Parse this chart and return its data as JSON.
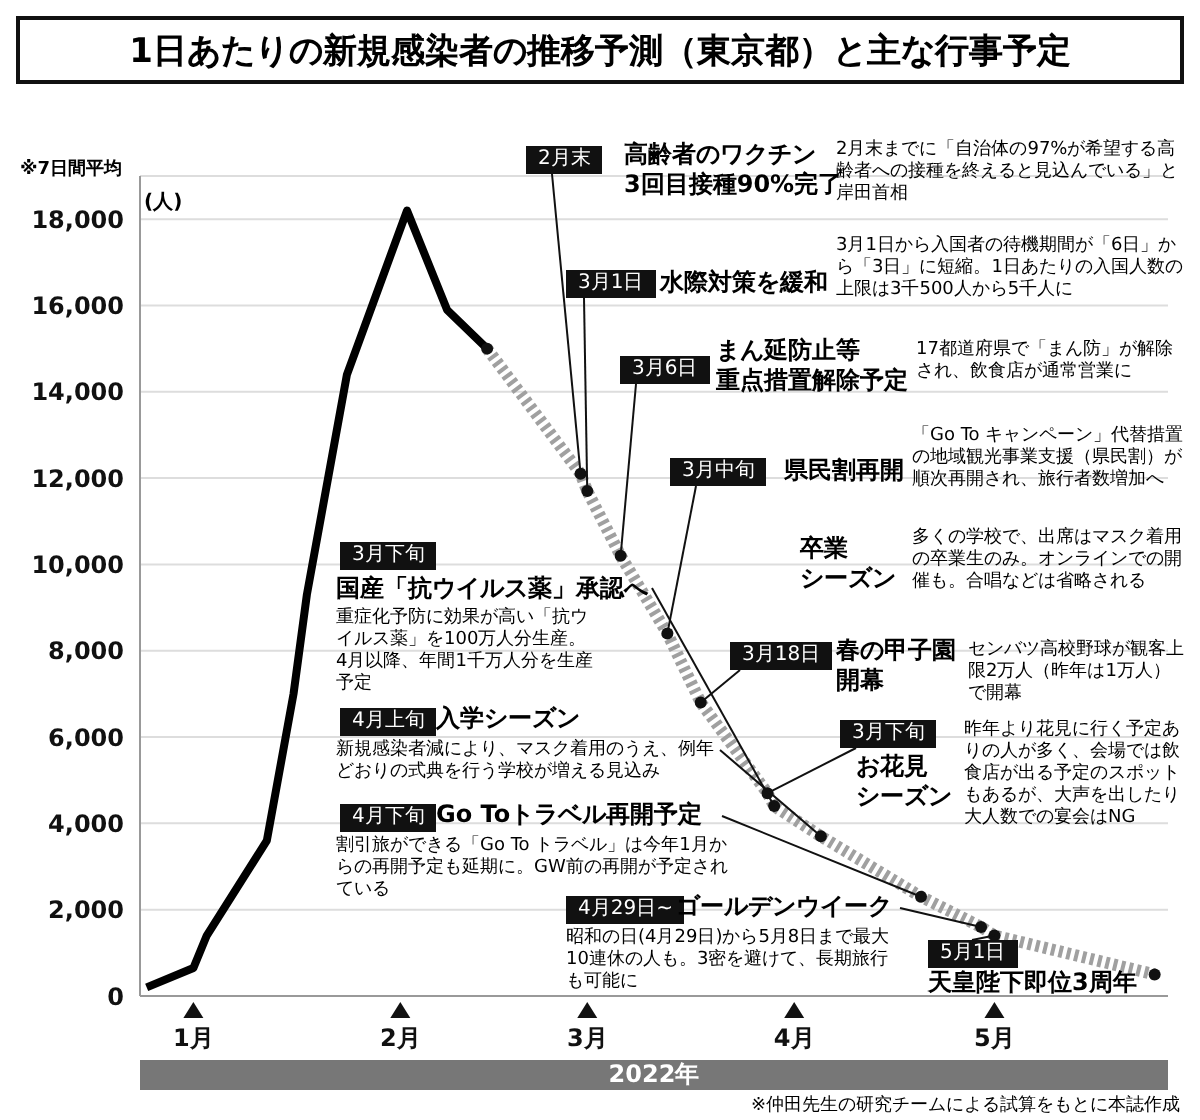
{
  "chart_data": {
    "type": "line",
    "title": "1日あたりの新規感染者の推移予測（東京都）と主な行事予定",
    "xlabel": "2022年",
    "ylabel": "(人)",
    "xlim": [
      "2021-12-24",
      "2022-05-27"
    ],
    "xticks": [
      {
        "value": "2022-01-01",
        "label": "1月"
      },
      {
        "value": "2022-02-01",
        "label": "2月"
      },
      {
        "value": "2022-03-01",
        "label": "3月"
      },
      {
        "value": "2022-04-01",
        "label": "4月"
      },
      {
        "value": "2022-05-01",
        "label": "5月"
      }
    ],
    "ylim": [
      0,
      19000
    ],
    "yticks": [
      0,
      {
        "value": 2000,
        "label": "2,000"
      },
      {
        "value": 4000,
        "label": "4,000"
      },
      {
        "value": 6000,
        "label": "6,000"
      },
      {
        "value": 8000,
        "label": "8,000"
      },
      {
        "value": 10000,
        "label": "10,000"
      },
      {
        "value": 12000,
        "label": "12,000"
      },
      {
        "value": 14000,
        "label": "14,000"
      },
      {
        "value": 16000,
        "label": "16,000"
      },
      {
        "value": 18000,
        "label": "18,000"
      }
    ],
    "grid": "y",
    "series": [
      {
        "color": "#000000",
        "line_style": "solid",
        "x": [
          "2021-12-25",
          "2022-01-01",
          "2022-01-03",
          "2022-01-12",
          "2022-01-16",
          "2022-01-18",
          "2022-01-24",
          "2022-02-02",
          "2022-02-08",
          "2022-02-14"
        ],
        "values": [
          200,
          650,
          1400,
          3600,
          7000,
          9300,
          14400,
          18200,
          15900,
          15000
        ]
      },
      {
        "color": "#a0a0a0",
        "line_style": "dotted",
        "marker": "circle",
        "x": [
          "2022-02-14",
          "2022-02-28",
          "2022-03-01",
          "2022-03-06",
          "2022-03-13",
          "2022-03-18",
          "2022-03-28",
          "2022-03-29",
          "2022-04-05",
          "2022-04-20",
          "2022-04-29",
          "2022-05-01",
          "2022-05-25"
        ],
        "values": [
          15000,
          12100,
          11700,
          10200,
          8400,
          6800,
          4700,
          4400,
          3700,
          2300,
          1600,
          1400,
          500
        ]
      }
    ],
    "annotations": [
      "※7日間平均",
      "※仲田先生の研究チームによる試算をもとに本誌作成",
      {
        "text": "2月末",
        "x": "2022-02-28",
        "y": 12100
      },
      "高齢者のワクチン",
      "3回目接種90%完了",
      "2月末までに「自治体の97%が希望する高齢者への接種を終えると見込んでいる」と岸田首相",
      {
        "text": "3月1日",
        "x": "2022-03-01",
        "y": 11700
      },
      "水際対策を緩和",
      "3月1日から入国者の待機期間が「6日」から「3日」に短縮。1日あたりの入国人数の上限は3千500人から5千人に",
      {
        "text": "3月6日",
        "x": "2022-03-06",
        "y": 10200
      },
      "まん延防止等",
      "重点措置解除予定",
      "17都道府県で「まん防」が解除され、飲食店が通常営業に",
      {
        "text": "3月中旬",
        "x": "2022-03-13",
        "y": 8400
      },
      "県民割再開",
      "「Go To キャンペーン」代替措置の地域観光事業支援（県民割）が順次再開され、旅行者数増加へ",
      "卒業",
      "シーズン",
      "多くの学校で、出席はマスク着用の卒業生のみ。オンラインでの開催も。合唱などは省略される",
      {
        "text": "3月18日",
        "x": "2022-03-18",
        "y": 6800
      },
      "春の甲子園",
      "開幕",
      "センバツ高校野球が観客上限2万人（昨年は1万人）で開幕",
      {
        "text": "3月下旬",
        "x": "2022-03-28",
        "y": 4700
      },
      "お花見",
      "シーズン",
      "昨年より花見に行く予定ありの人が多く、会場では飲食店が出る予定のスポットもあるが、大声を出したり大人数での宴会はNG",
      "3月下旬",
      {
        "text": "国産「抗ウイルス薬」承認へ",
        "x": "2022-03-29",
        "y": 4400
      },
      "重症化予防に効果が高い「抗ウイルス薬」を100万人分生産。4月以降、年間1千万人分を生産予定",
      "4月上旬",
      "入学シーズン",
      {
        "text": "新規感染者減により、マスク着用のうえ、例年どおりの式典を行う学校が増える見込み",
        "x": "2022-04-05",
        "y": 3700
      },
      "4月下旬",
      {
        "text": "Go Toトラベル再開予定",
        "x": "2022-04-20",
        "y": 2300
      },
      "割引旅ができる「Go To トラベル」は今年1月からの再開予定も延期に。GW前の再開が予定されている",
      "4月29日~",
      {
        "text": "ゴールデンウイーク",
        "x": "2022-04-29",
        "y": 1600
      },
      "昭和の日(4月29日)から5月8日まで最大10連休の人も。3密を避けて、長期旅行も可能に",
      {
        "text": "5月1日",
        "x": "2022-05-01",
        "y": 1400
      },
      "天皇陛下即位3周年"
    ]
  }
}
